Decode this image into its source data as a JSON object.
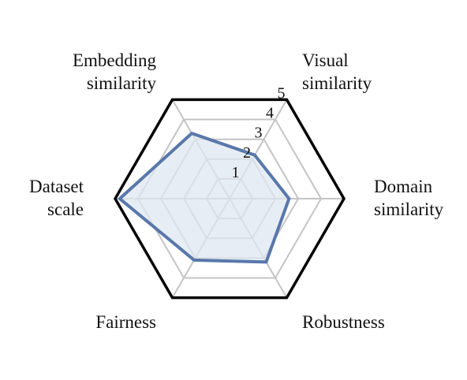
{
  "chart_data": {
    "type": "radar",
    "axes": [
      {
        "label": [
          "Visual",
          "similarity"
        ]
      },
      {
        "label": [
          "Domain",
          "similarity"
        ]
      },
      {
        "label": [
          "Robustness"
        ]
      },
      {
        "label": [
          "Fairness"
        ]
      },
      {
        "label": [
          "Dataset",
          "scale"
        ]
      },
      {
        "label": [
          "Embedding",
          "similarity"
        ]
      }
    ],
    "rmax": 5,
    "ticks": [
      "1",
      "2",
      "3",
      "4",
      "5"
    ],
    "grid": true,
    "series": [
      {
        "values": [
          2.2,
          2.6,
          3.2,
          3.1,
          4.8,
          3.3
        ],
        "line_color": "#5878ab",
        "fill_color": "#dfe7f0"
      }
    ],
    "grid_color": "#c4c4c4",
    "outer_color": "#000000"
  }
}
